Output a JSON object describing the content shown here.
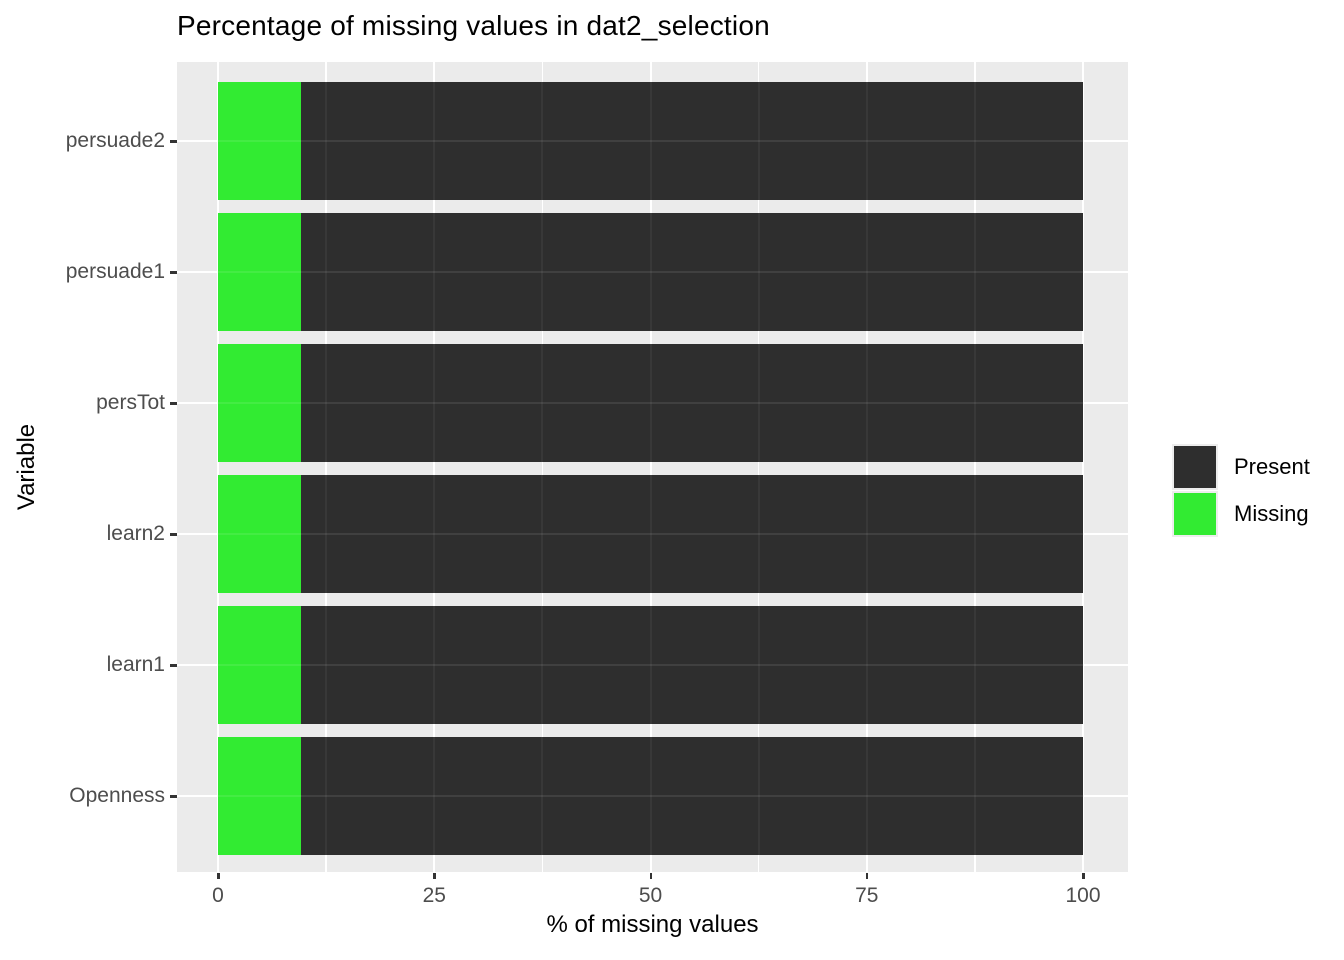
{
  "chart_data": {
    "type": "bar",
    "orientation": "horizontal-stacked",
    "title": "Percentage of missing values in dat2_selection",
    "xlabel": "% of missing values",
    "ylabel": "Variable",
    "categories": [
      "persuade2",
      "persuade1",
      "persTot",
      "learn2",
      "learn1",
      "Openness"
    ],
    "series": [
      {
        "name": "Missing",
        "color": "#32EB32",
        "values": [
          9.6,
          9.6,
          9.6,
          9.6,
          9.6,
          9.6
        ]
      },
      {
        "name": "Present",
        "color": "#2E2E2E",
        "values": [
          90.4,
          90.4,
          90.4,
          90.4,
          90.4,
          90.4
        ]
      }
    ],
    "stack_order": [
      "Missing",
      "Present"
    ],
    "xlim": [
      0,
      100
    ],
    "x_ticks": [
      0,
      25,
      50,
      75,
      100
    ],
    "x_minor_ticks": [
      12.5,
      37.5,
      62.5,
      87.5
    ],
    "grid": "on",
    "legend": {
      "position": "right",
      "entries": [
        {
          "label": "Present",
          "color": "#2E2E2E"
        },
        {
          "label": "Missing",
          "color": "#32EB32"
        }
      ]
    },
    "style": {
      "panel_bg": "#EBEBEB",
      "grid_color": "#FFFFFF",
      "axis_text_color": "#4D4D4D",
      "tick_mark_color": "#333333",
      "title_color": "#000000"
    }
  }
}
